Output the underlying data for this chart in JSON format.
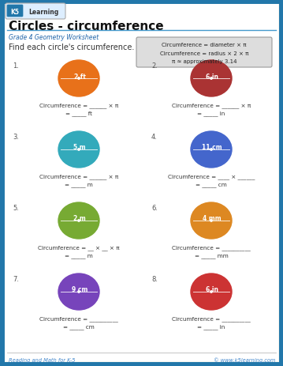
{
  "title": "Circles - circumference",
  "subtitle": "Grade 4 Geometry Worksheet",
  "instruction": "Find each circle's circumference.",
  "formula_box": [
    "Circumference = diameter × π",
    "Circumference = radius × 2 × π",
    "π ≈ approximately 3.14"
  ],
  "page_bg": "#f5f5f0",
  "border_color": "#2277aa",
  "circles": [
    {
      "num": "1.",
      "label": "2 ft",
      "color": "#e8711a",
      "col": 0,
      "row": 0,
      "line1": "Circumference = ______ × π",
      "line2": "= _____ ft"
    },
    {
      "num": "2.",
      "label": "6 in",
      "color": "#aa3333",
      "col": 1,
      "row": 0,
      "line1": "Circumference = ______ × π",
      "line2": "= _____ in"
    },
    {
      "num": "3.",
      "label": "5 m",
      "color": "#33aabb",
      "col": 0,
      "row": 1,
      "line1": "Circumference = ______ × π",
      "line2": "= _____ m"
    },
    {
      "num": "4.",
      "label": "11 cm",
      "color": "#4466cc",
      "col": 1,
      "row": 1,
      "line1": "Circumference = ____ × ______",
      "line2": "= _____ cm"
    },
    {
      "num": "5.",
      "label": "2 m",
      "color": "#77aa33",
      "col": 0,
      "row": 2,
      "line1": "Circumference = __ × __ × π",
      "line2": "= _____ m"
    },
    {
      "num": "6.",
      "label": "4 mm",
      "color": "#dd8822",
      "col": 1,
      "row": 2,
      "line1": "Circumference = __________",
      "line2": "= _____ mm"
    },
    {
      "num": "7.",
      "label": "9 cm",
      "color": "#7744bb",
      "col": 0,
      "row": 3,
      "line1": "Circumference = __________",
      "line2": "= _____ cm"
    },
    {
      "num": "8.",
      "label": "6 in",
      "color": "#cc3333",
      "col": 1,
      "row": 3,
      "line1": "Circumference = __________",
      "line2": "= _____ in"
    }
  ],
  "footer_left": "Reading and Math for K-5",
  "footer_right": "© www.k5learning.com"
}
